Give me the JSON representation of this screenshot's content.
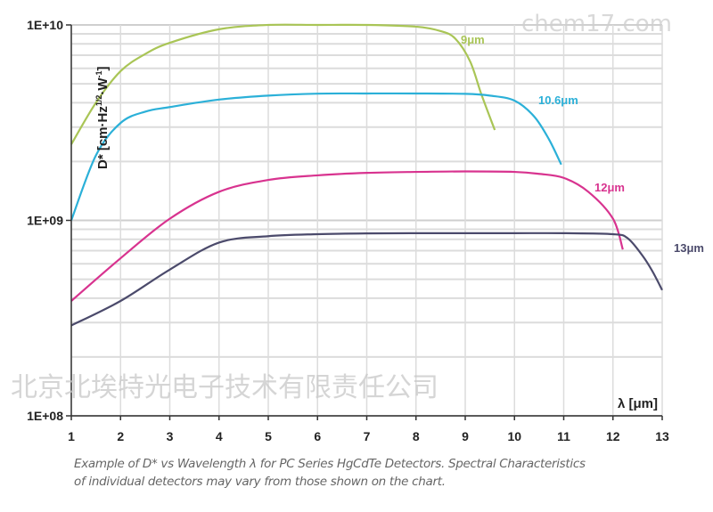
{
  "chart_data": {
    "type": "line",
    "title": "",
    "xlabel": "λ [μm]",
    "ylabel": "D* [cm·Hz1/2·W-1]",
    "ylabel_parts": {
      "base": "D* [cm·Hz",
      "sup1": "1/2",
      "mid": "·W",
      "sup2": "-1",
      "end": "]"
    },
    "xlim": [
      1,
      13
    ],
    "ylim": [
      100000000.0,
      10000000000.0
    ],
    "yscale": "log",
    "grid": true,
    "xticks": [
      "1",
      "2",
      "3",
      "4",
      "5",
      "6",
      "7",
      "8",
      "9",
      "10",
      "11",
      "12",
      "13"
    ],
    "yticks": [
      {
        "value": 10000000000.0,
        "label": "1E+10"
      },
      {
        "value": 1000000000.0,
        "label": "1E+09"
      },
      {
        "value": 100000000.0,
        "label": "1E+08"
      }
    ],
    "series": [
      {
        "name": "9μm",
        "color": "#a9c556",
        "x": [
          1,
          1.5,
          2,
          2.5,
          3,
          4,
          5,
          6,
          7,
          8,
          8.5,
          8.8,
          9.1,
          9.33,
          9.6
        ],
        "y": [
          2450000000.0,
          4000000000.0,
          5800000000.0,
          7100000000.0,
          8100000000.0,
          9500000000.0,
          10000000000.0,
          10000000000.0,
          10000000000.0,
          9800000000.0,
          9300000000.0,
          8500000000.0,
          6500000000.0,
          4400000000.0,
          2900000000.0
        ]
      },
      {
        "name": "10.6μm",
        "color": "#2bb0d8",
        "x": [
          1,
          1.5,
          2,
          2.5,
          3,
          4,
          5,
          6,
          7,
          8,
          9,
          9.5,
          10,
          10.4,
          10.7,
          10.95
        ],
        "y": [
          1000000000.0,
          2150000000.0,
          3150000000.0,
          3600000000.0,
          3800000000.0,
          4150000000.0,
          4350000000.0,
          4450000000.0,
          4460000000.0,
          4460000000.0,
          4440000000.0,
          4350000000.0,
          4100000000.0,
          3400000000.0,
          2600000000.0,
          1930000000.0
        ]
      },
      {
        "name": "12μm",
        "color": "#d8338f",
        "x": [
          1,
          2,
          3,
          4,
          5,
          6,
          7,
          8,
          9,
          10,
          10.5,
          11,
          11.5,
          12,
          12.2
        ],
        "y": [
          387000000.0,
          640000000.0,
          1020000000.0,
          1400000000.0,
          1610000000.0,
          1700000000.0,
          1750000000.0,
          1770000000.0,
          1780000000.0,
          1770000000.0,
          1730000000.0,
          1650000000.0,
          1400000000.0,
          1020000000.0,
          710000000.0
        ]
      },
      {
        "name": "13μm",
        "color": "#4b4a6b",
        "x": [
          1,
          2,
          3,
          4,
          5,
          6,
          7,
          8,
          9,
          10,
          11,
          12,
          12.3,
          12.6,
          12.8,
          13
        ],
        "y": [
          290000000.0,
          387000000.0,
          560000000.0,
          770000000.0,
          830000000.0,
          850000000.0,
          858000000.0,
          860000000.0,
          860000000.0,
          860000000.0,
          860000000.0,
          850000000.0,
          810000000.0,
          660000000.0,
          550000000.0,
          440000000.0
        ]
      }
    ]
  },
  "caption": {
    "line1": "Example of D* vs Wavelength λ for PC Series HgCdTe Detectors. Spectral Characteristics",
    "line2": "of individual detectors may vary from those shown on the chart."
  },
  "watermarks": {
    "top": "chem17.com",
    "middle": "北京北埃特光电子技术有限责任公司"
  }
}
